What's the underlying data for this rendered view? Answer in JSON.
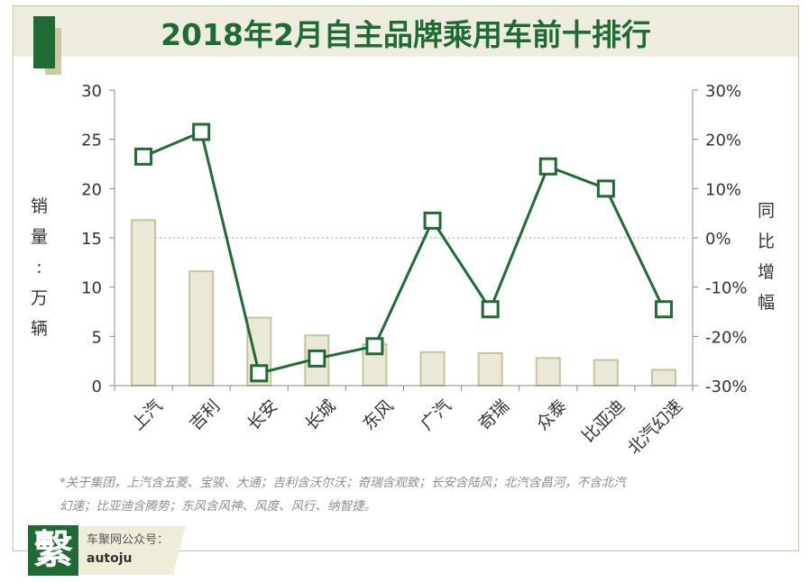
{
  "title": "2018年2月自主品牌乘用车前十排行",
  "colors": {
    "accent": "#1e6b34",
    "bar_fill": "#ebe8d8",
    "bar_stroke": "#c9c29a",
    "band": "#eeecdf"
  },
  "chart_data": {
    "type": "bar+line",
    "categories": [
      "上汽",
      "吉利",
      "长安",
      "长城",
      "东风",
      "广汽",
      "奇瑞",
      "众泰",
      "比亚迪",
      "北汽幻速"
    ],
    "series": [
      {
        "type": "bar",
        "axis": "left",
        "values": [
          16.8,
          11.6,
          6.9,
          5.1,
          4.2,
          3.4,
          3.3,
          2.8,
          2.6,
          1.6
        ]
      },
      {
        "type": "line",
        "axis": "right",
        "values": [
          16.5,
          21.5,
          -27.5,
          -24.5,
          -22.0,
          3.5,
          -14.5,
          14.5,
          10.0,
          -14.5
        ]
      }
    ],
    "ylabel_left": [
      "销",
      "量",
      ":",
      "万",
      "辆"
    ],
    "ylabel_right": [
      "同",
      "比",
      "增",
      "幅"
    ],
    "y_left_ticks": [
      "30",
      "25",
      "20",
      "15",
      "10",
      "5",
      "0"
    ],
    "y_right_ticks": [
      "30%",
      "20%",
      "10%",
      "0%",
      "-10%",
      "-20%",
      "-30%"
    ],
    "ylim_left": [
      0,
      30
    ],
    "ylim_right": [
      -30,
      30
    ],
    "zero_reference_line": "dotted"
  },
  "footnote": {
    "line1": "*关于集团，上汽含五菱、宝骏、大通；吉利含沃尔沃；奇瑞含观致；长安含陆风；北汽含昌河，不含北汽",
    "line2": "幻速；比亚迪含腾势；东风含风神、风度、风行、纳智捷。"
  },
  "logo": {
    "glyph": "繫",
    "line1": "车聚网公众号：",
    "line2": "autoju"
  }
}
